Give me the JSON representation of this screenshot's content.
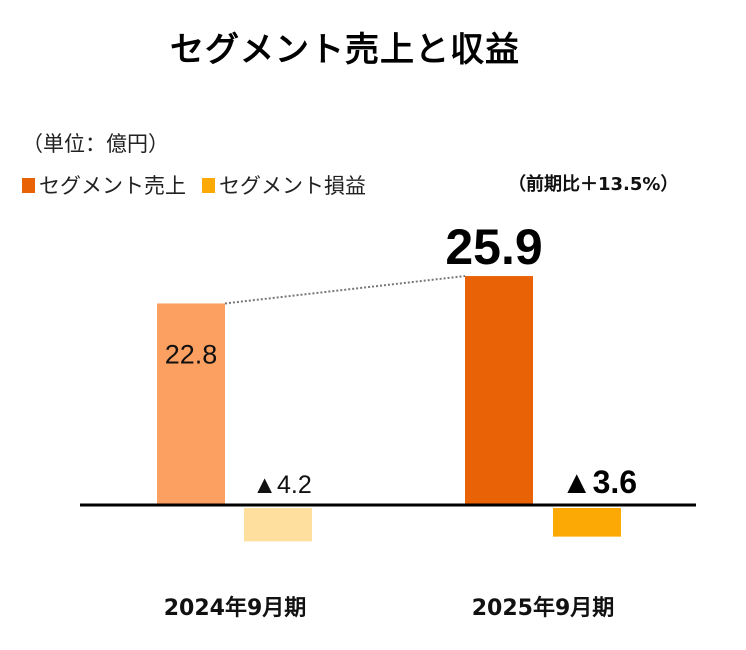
{
  "title": "セグメント売上と収益",
  "unit_label": "（単位：億円）",
  "yoy_label": "（前期比＋13.5%）",
  "colors": {
    "sales_2024": "#FCA062",
    "sales_2025": "#EA6206",
    "profit_2024": "#FFDF9E",
    "profit_2025": "#FCA905",
    "legend_sales": "#EA6206",
    "legend_profit": "#FCA905"
  },
  "chart_data": {
    "type": "bar",
    "title": "セグメント売上と収益",
    "categories": [
      "2024年9月期",
      "2025年9月期"
    ],
    "series": [
      {
        "name": "セグメント売上",
        "values": [
          22.8,
          25.9
        ],
        "labels": [
          "22.8",
          "25.9"
        ]
      },
      {
        "name": "セグメント損益",
        "values": [
          -4.2,
          -3.6
        ],
        "labels": [
          "▲4.2",
          "▲3.6"
        ]
      }
    ],
    "annotation": "（前期比＋13.5%）",
    "legend_position": "top-left",
    "grid": false
  }
}
